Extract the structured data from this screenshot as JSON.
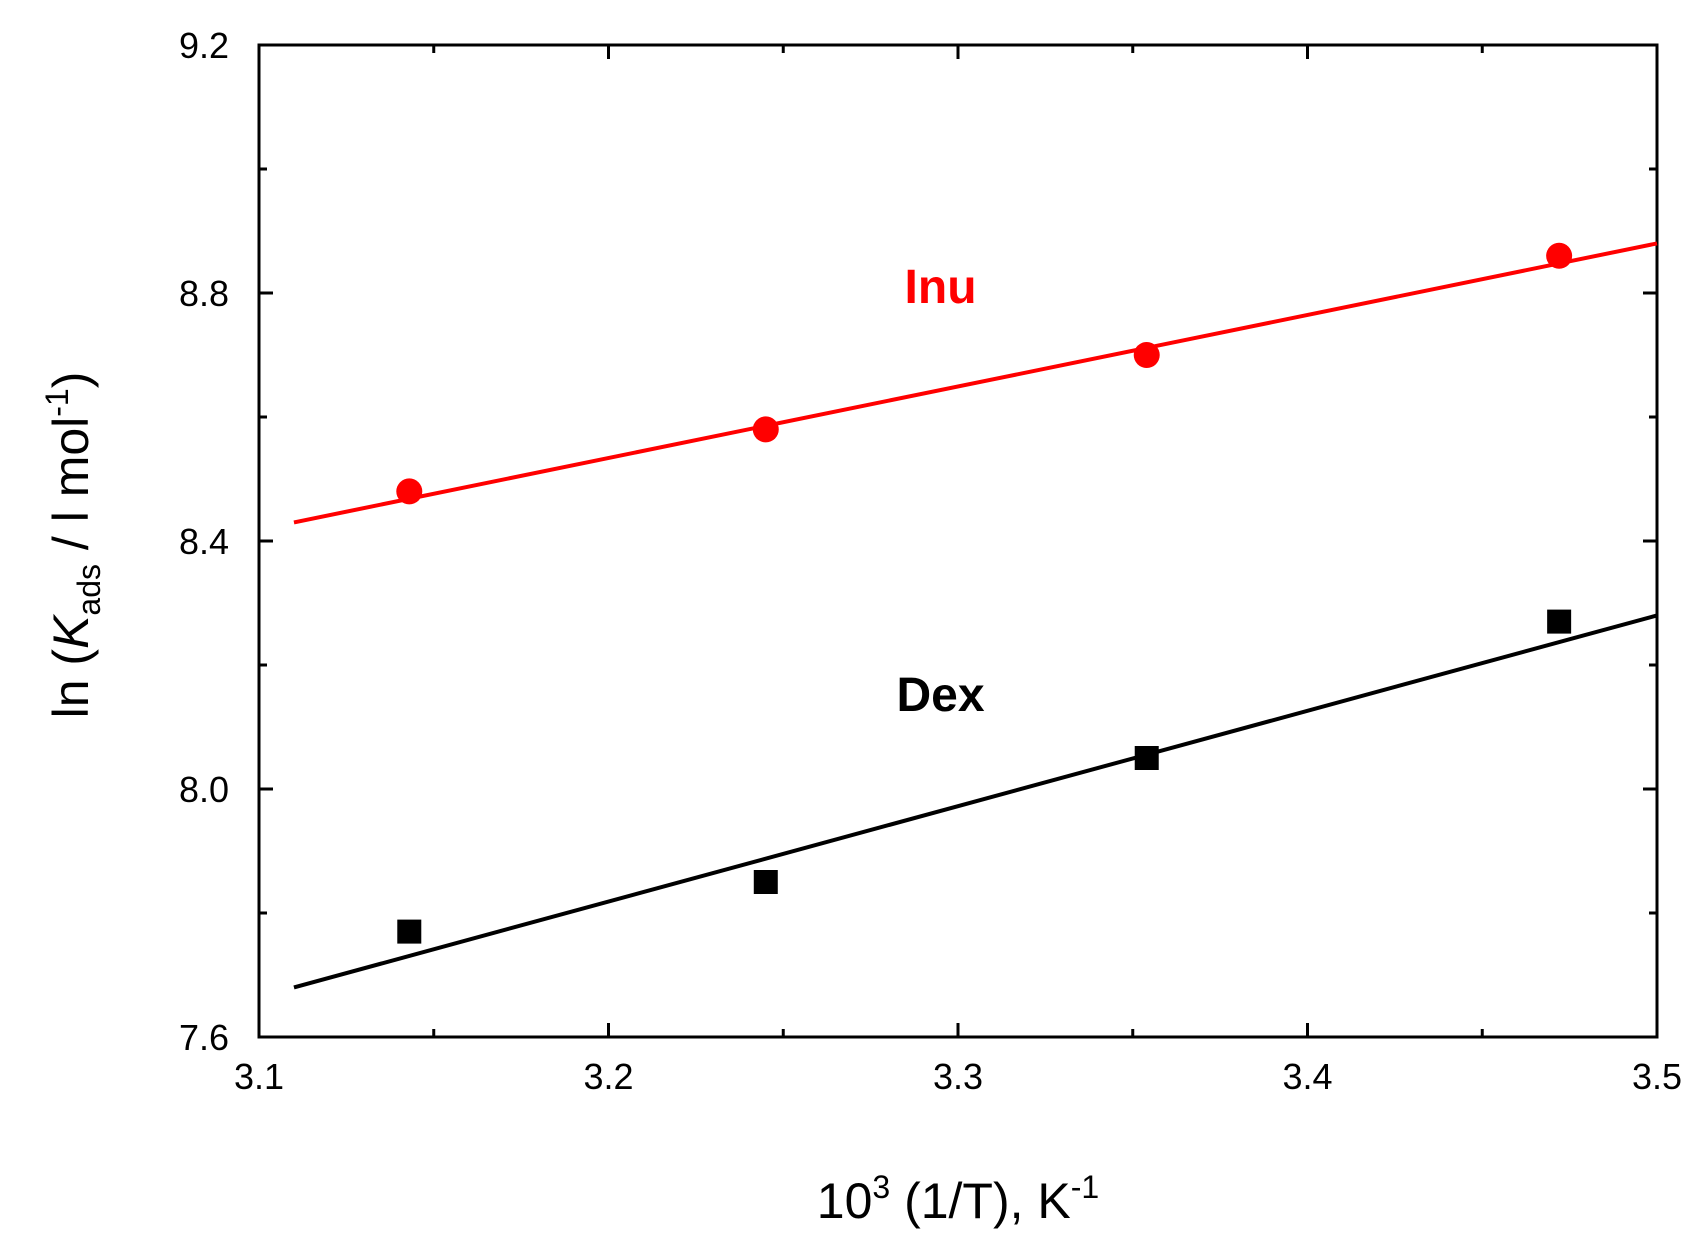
{
  "chart_data": {
    "type": "scatter",
    "xlabel": {
      "base": "10",
      "base_sup": "3",
      "mid": " (1/T), K",
      "unit_sup": "-1"
    },
    "ylabel": {
      "prefix": "ln (",
      "var": "K",
      "var_sub": "ads",
      "mid": " / l mol",
      "unit_sup": "-1",
      "suffix": ")"
    },
    "xlim": [
      3.1,
      3.5
    ],
    "ylim": [
      7.6,
      9.2
    ],
    "x_ticks": [
      "3.1",
      "3.2",
      "3.3",
      "3.4",
      "3.5"
    ],
    "y_ticks": [
      "7.6",
      "8.0",
      "8.4",
      "8.8",
      "9.2"
    ],
    "grid": false,
    "series": [
      {
        "name": "Inu",
        "color": "#ff0000",
        "marker": "circle",
        "points": [
          {
            "x": 3.143,
            "y": 8.48
          },
          {
            "x": 3.245,
            "y": 8.58
          },
          {
            "x": 3.354,
            "y": 8.7
          },
          {
            "x": 3.472,
            "y": 8.86
          }
        ],
        "fit": {
          "x": [
            3.11,
            3.5
          ],
          "y": [
            8.43,
            8.88
          ]
        }
      },
      {
        "name": "Dex",
        "color": "#000000",
        "marker": "square",
        "points": [
          {
            "x": 3.143,
            "y": 7.77
          },
          {
            "x": 3.245,
            "y": 7.85
          },
          {
            "x": 3.354,
            "y": 8.05
          },
          {
            "x": 3.472,
            "y": 8.27
          }
        ],
        "fit": {
          "x": [
            3.11,
            3.5
          ],
          "y": [
            7.68,
            8.28
          ]
        }
      }
    ]
  }
}
